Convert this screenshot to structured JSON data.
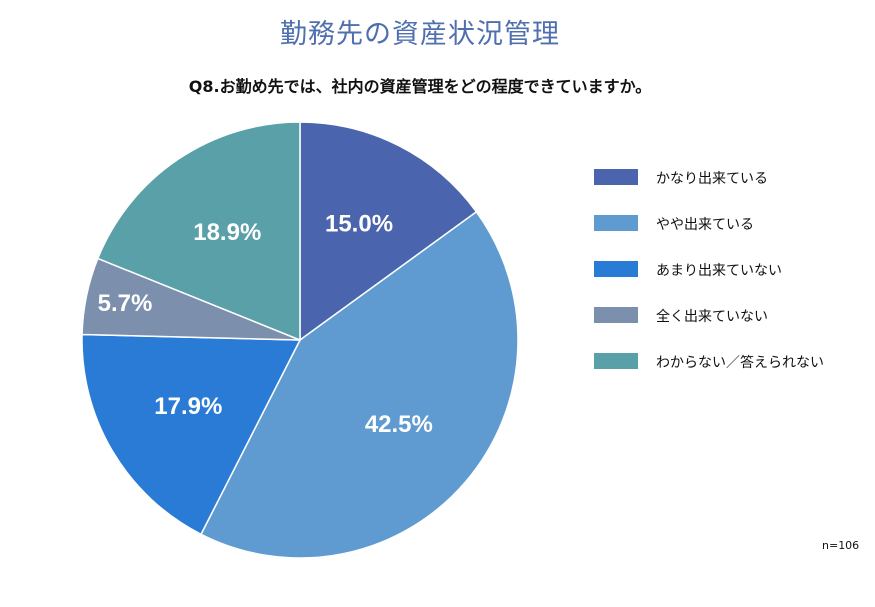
{
  "title": "勤務先の資産状況管理",
  "subtitle": "Q8.お勤め先では、社内の資産管理をどの程度できていますか。",
  "sample_size": "n=106",
  "chart_data": {
    "type": "pie",
    "categories": [
      "かなり出来ている",
      "やや出来ている",
      "あまり出来ていない",
      "全く出来ていない",
      "わからない／答えられない"
    ],
    "values": [
      15.0,
      42.5,
      17.9,
      5.7,
      18.9
    ],
    "value_labels": [
      "15.0%",
      "42.5%",
      "17.9%",
      "5.7%",
      "18.9%"
    ],
    "colors": [
      "#4a64ad",
      "#5f9bd0",
      "#2a7bd6",
      "#7c8fad",
      "#59a0a8"
    ],
    "start_angle_deg": 0,
    "direction": "clockwise",
    "legend_position": "right"
  }
}
